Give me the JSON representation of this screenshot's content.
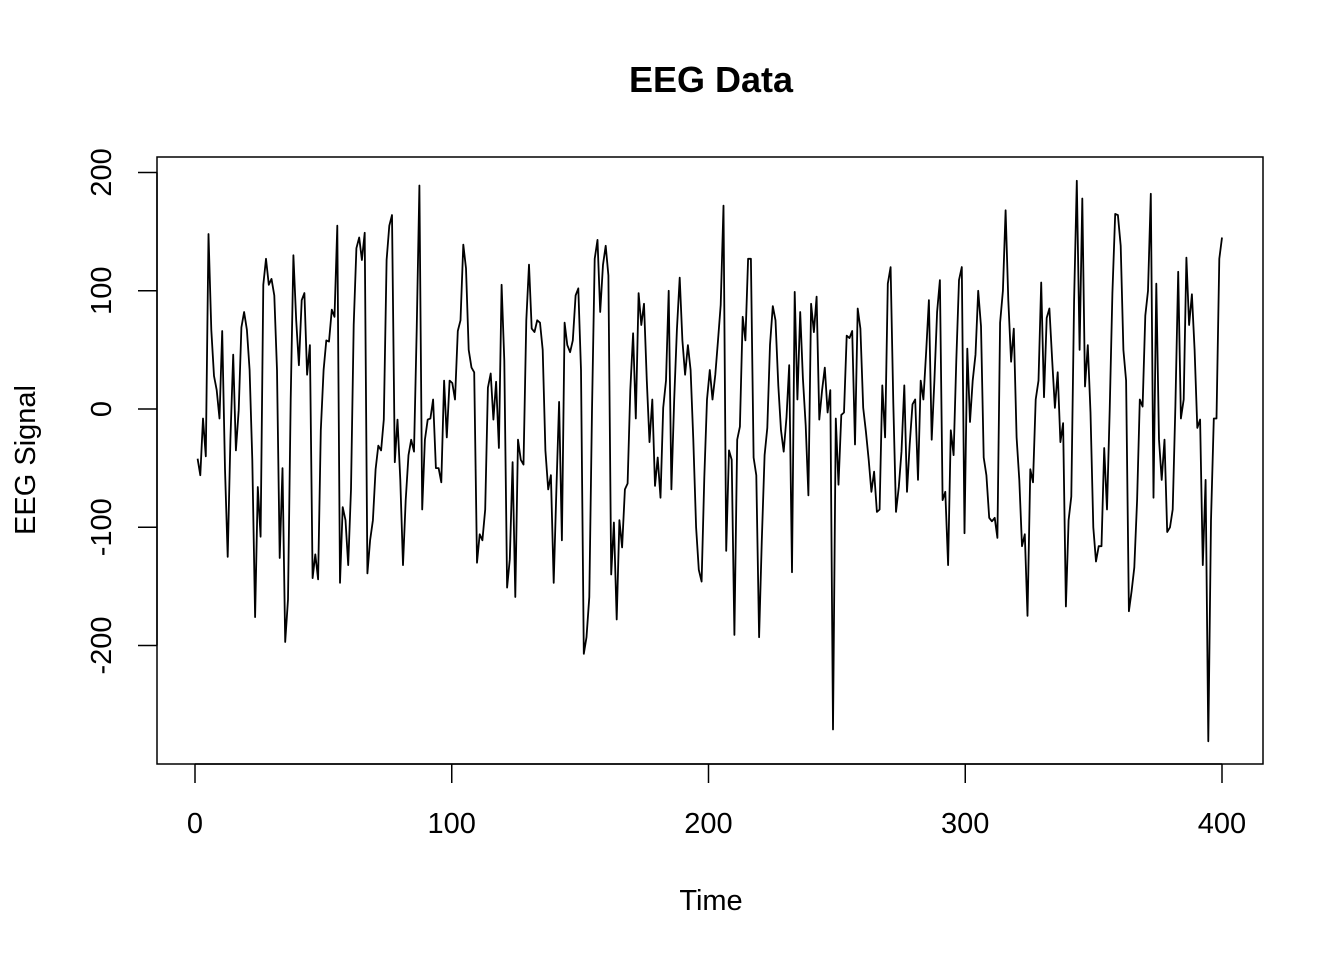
{
  "chart_data": {
    "type": "line",
    "title": "EEG Data",
    "xlabel": "Time",
    "ylabel": "EEG Signal",
    "xlim": [
      1,
      400
    ],
    "ylim": [
      -282,
      194
    ],
    "x_ticks": [
      0,
      100,
      200,
      300,
      400
    ],
    "y_ticks": [
      -200,
      -100,
      0,
      100,
      200
    ],
    "x_tick_labels": [
      "0",
      "100",
      "200",
      "300",
      "400"
    ],
    "y_tick_labels": [
      "-200",
      "-100",
      "0",
      "100",
      "200"
    ],
    "grid": false,
    "line_color": "#000000",
    "x_start": 1,
    "x_end": 400,
    "values": [
      -42,
      -56,
      -8,
      -40,
      148,
      67,
      28,
      16,
      -8,
      66,
      -51,
      -125,
      -26,
      46,
      -35,
      -1,
      69,
      82,
      67,
      33,
      -43,
      -176,
      -66,
      -108,
      105,
      127,
      105,
      110,
      96,
      33,
      -126,
      -50,
      -197,
      -161,
      8,
      130,
      75,
      37,
      92,
      98,
      29,
      54,
      -143,
      -123,
      -144,
      -18,
      33,
      58,
      57,
      84,
      78,
      155,
      -147,
      -83,
      -94,
      -132,
      -68,
      71,
      136,
      145,
      126,
      149,
      -139,
      -111,
      -94,
      -51,
      -31,
      -35,
      -9,
      126,
      155,
      164,
      -45,
      -9,
      -60,
      -132,
      -77,
      -39,
      -26,
      -36,
      67,
      189,
      -85,
      -26,
      -9,
      -8,
      8,
      -50,
      -50,
      -62,
      24,
      -24,
      24,
      22,
      8,
      66,
      75,
      139,
      119,
      50,
      35,
      31,
      -130,
      -106,
      -111,
      -85,
      18,
      30,
      -9,
      23,
      -33,
      105,
      41,
      -151,
      -127,
      -45,
      -159,
      -26,
      -43,
      -47,
      75,
      122,
      68,
      65,
      75,
      73,
      50,
      -35,
      -68,
      -56,
      -147,
      -68,
      6,
      -111,
      73,
      54,
      48,
      58,
      96,
      102,
      33,
      -207,
      -193,
      -159,
      -1,
      127,
      143,
      82,
      122,
      138,
      113,
      -140,
      -96,
      -178,
      -94,
      -117,
      -68,
      -63,
      16,
      64,
      -8,
      98,
      71,
      89,
      24,
      -28,
      8,
      -65,
      -41,
      -75,
      1,
      24,
      100,
      -68,
      8,
      67,
      111,
      58,
      29,
      54,
      33,
      -26,
      -100,
      -136,
      -146,
      -58,
      8,
      33,
      8,
      29,
      58,
      88,
      172,
      -120,
      -35,
      -43,
      -191,
      -26,
      -15,
      78,
      58,
      127,
      127,
      -41,
      -56,
      -193,
      -111,
      -39,
      -16,
      54,
      87,
      75,
      20,
      -18,
      -36,
      -7,
      37,
      -138,
      99,
      8,
      82,
      26,
      -14,
      -73,
      89,
      65,
      95,
      -9,
      16,
      35,
      -3,
      16,
      -271,
      -8,
      -64,
      -5,
      -3,
      62,
      60,
      66,
      -30,
      85,
      68,
      1,
      -19,
      -43,
      -70,
      -53,
      -87,
      -85,
      20,
      -24,
      106,
      120,
      5,
      -87,
      -66,
      -36,
      20,
      -70,
      -30,
      4,
      8,
      -60,
      24,
      8,
      49,
      92,
      -26,
      24,
      82,
      109,
      -77,
      -70,
      -132,
      -18,
      -39,
      41,
      109,
      120,
      -105,
      51,
      -11,
      24,
      46,
      100,
      70,
      -41,
      -56,
      -92,
      -95,
      -92,
      -109,
      73,
      100,
      168,
      92,
      40,
      68,
      -24,
      -60,
      -116,
      -106,
      -175,
      -51,
      -62,
      8,
      24,
      107,
      10,
      77,
      85,
      41,
      1,
      31,
      -28,
      -12,
      -167,
      -94,
      -74,
      92,
      193,
      50,
      178,
      19,
      54,
      -3,
      -100,
      -129,
      -116,
      -116,
      -33,
      -85,
      -1,
      98,
      165,
      164,
      138,
      50,
      24,
      -171,
      -154,
      -134,
      -77,
      8,
      2,
      79,
      100,
      182,
      -75,
      106,
      -26,
      -60,
      -26,
      -104,
      -100,
      -85,
      3,
      116,
      -8,
      8,
      128,
      71,
      97,
      50,
      -16,
      -9,
      -132,
      -60,
      -281,
      -94,
      -8,
      -8,
      127,
      145
    ]
  }
}
